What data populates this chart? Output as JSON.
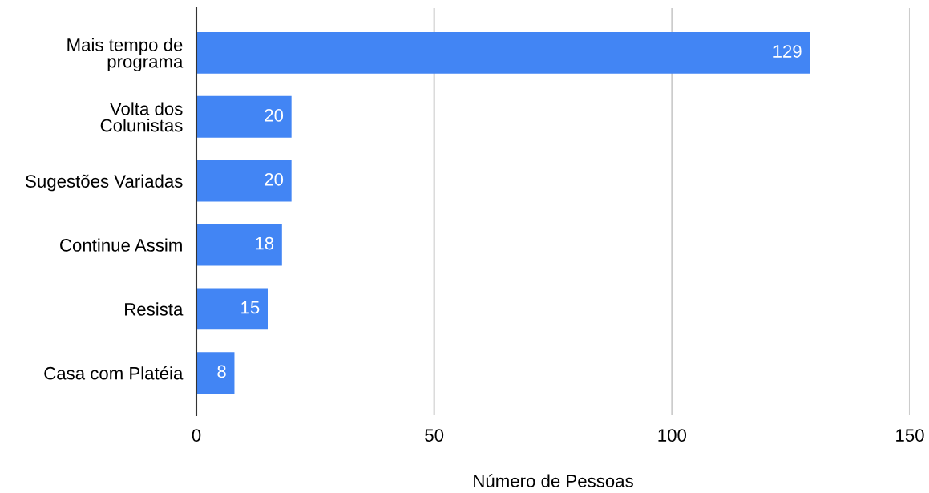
{
  "chart_data": {
    "type": "bar",
    "orientation": "horizontal",
    "xlabel": "Número de Pessoas",
    "categories": [
      "Mais tempo de\nprograma",
      "Volta dos\nColunistas",
      "Sugestões Variadas",
      "Continue Assim",
      "Resista",
      "Casa com Platéia"
    ],
    "values": [
      129,
      20,
      20,
      18,
      15,
      8
    ],
    "color": "#4285f4",
    "xlim": [
      0,
      150
    ],
    "xticks": [
      0,
      50,
      100,
      150
    ],
    "grid": "x",
    "data_labels": true
  }
}
